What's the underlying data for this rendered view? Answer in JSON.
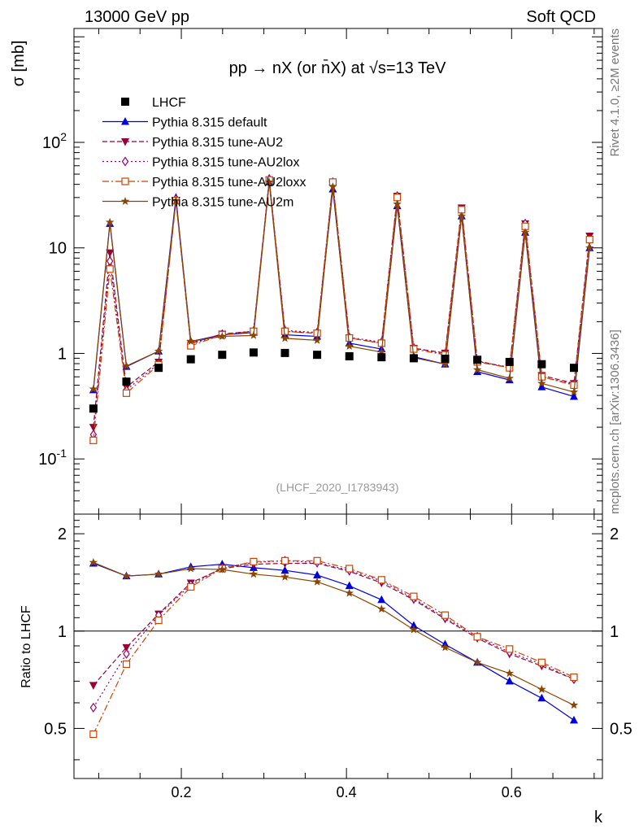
{
  "header": {
    "left": "13000 GeV pp",
    "right": "Soft QCD"
  },
  "side_labels": {
    "rivet": "Rivet 4.1.0, ≥2M events",
    "mcplots": "mcplots.cern.ch [arXiv:1306.3436]"
  },
  "colors": {
    "lhcf": "#000000",
    "default": "#0000dd",
    "au2": "#990033",
    "au2lox": "#990066",
    "au2loxx": "#cc4400",
    "au2m": "#8b4500"
  },
  "chart_data": {
    "type": "line",
    "title": "pp → nX (or n̄X) at √s=13 TeV",
    "analysis_label": "(LHCF_2020_I1783943)",
    "xlabel": "k",
    "ylabel": "σ [mb]",
    "ratio_ylabel": "Ratio to LHCF",
    "xlim": [
      0.07,
      0.71
    ],
    "ylim": [
      0.03,
      1200
    ],
    "ratio_ylim": [
      0.35,
      2.3
    ],
    "x_ticks": [
      "0.2",
      "0.4",
      "0.6"
    ],
    "y_ticks": [
      "10^-1",
      "1",
      "10",
      "10^2"
    ],
    "ratio_ticks": [
      "0.5",
      "1",
      "2"
    ],
    "legend_position": "top-left",
    "x": [
      0.0935,
      0.1135,
      0.1335,
      0.1725,
      0.1935,
      0.2115,
      0.2495,
      0.2875,
      0.3065,
      0.3255,
      0.3645,
      0.3835,
      0.4035,
      0.4425,
      0.4615,
      0.4815,
      0.5195,
      0.5395,
      0.5585,
      0.5975,
      0.6165,
      0.6365,
      0.6755,
      0.6945
    ],
    "data_points": {
      "x": [
        0.0935,
        0.1335,
        0.1725,
        0.2115,
        0.2495,
        0.2875,
        0.3255,
        0.3645,
        0.4035,
        0.4425,
        0.4815,
        0.5195,
        0.5585,
        0.5975,
        0.6365,
        0.6755
      ],
      "values": [
        0.3,
        0.54,
        0.73,
        0.88,
        0.97,
        1.02,
        1.01,
        0.97,
        0.94,
        0.92,
        0.9,
        0.89,
        0.87,
        0.83,
        0.79,
        0.73
      ]
    },
    "series": [
      {
        "name": "LHCF",
        "key": "lhcf",
        "marker": "square",
        "dash": ""
      },
      {
        "name": "Pythia 8.315 default",
        "key": "default",
        "marker": "triangle",
        "dash": "",
        "values": [
          0.45,
          17,
          0.75,
          1.05,
          30,
          1.3,
          1.5,
          1.58,
          42,
          1.5,
          1.45,
          36,
          1.25,
          1.1,
          25,
          0.93,
          0.79,
          20,
          0.67,
          0.56,
          14,
          0.48,
          0.39,
          10
        ],
        "ratio": [
          1.62,
          1.48,
          1.5,
          1.58,
          1.61,
          1.57,
          1.54,
          1.49,
          1.38,
          1.25,
          1.04,
          0.91,
          0.8,
          0.7,
          0.62,
          0.53
        ]
      },
      {
        "name": "Pythia 8.315 tune-AU2",
        "key": "au2",
        "marker": "triangle-down",
        "dash": "6,3",
        "values": [
          0.2,
          9.0,
          0.48,
          0.83,
          28,
          1.25,
          1.53,
          1.62,
          44,
          1.62,
          1.55,
          40,
          1.4,
          1.25,
          31,
          1.12,
          1.01,
          24,
          0.85,
          0.73,
          17,
          0.62,
          0.52,
          13
        ],
        "ratio": [
          0.68,
          0.89,
          1.13,
          1.41,
          1.56,
          1.61,
          1.62,
          1.62,
          1.53,
          1.41,
          1.25,
          1.09,
          0.95,
          0.85,
          0.78,
          0.71
        ]
      },
      {
        "name": "Pythia 8.315 tune-AU2lox",
        "key": "au2lox",
        "marker": "diamond",
        "dash": "2,3",
        "values": [
          0.17,
          7.5,
          0.45,
          0.8,
          29,
          1.22,
          1.52,
          1.63,
          45,
          1.65,
          1.58,
          42,
          1.42,
          1.28,
          31,
          1.13,
          0.98,
          23,
          0.84,
          0.74,
          17,
          0.6,
          0.51,
          12
        ],
        "ratio": [
          0.58,
          0.85,
          1.12,
          1.39,
          1.57,
          1.63,
          1.65,
          1.63,
          1.54,
          1.43,
          1.26,
          1.1,
          0.96,
          0.86,
          0.79,
          0.71
        ]
      },
      {
        "name": "Pythia 8.315 tune-AU2loxx",
        "key": "au2loxx",
        "marker": "square-open",
        "dash": "8,3,2,3",
        "values": [
          0.15,
          6.3,
          0.42,
          0.78,
          28,
          1.18,
          1.5,
          1.62,
          44,
          1.62,
          1.55,
          42,
          1.4,
          1.25,
          30,
          1.1,
          0.97,
          23,
          0.83,
          0.73,
          16,
          0.6,
          0.5,
          12
        ],
        "ratio": [
          0.48,
          0.79,
          1.08,
          1.37,
          1.56,
          1.64,
          1.65,
          1.65,
          1.56,
          1.44,
          1.28,
          1.12,
          0.96,
          0.88,
          0.8,
          0.72
        ]
      },
      {
        "name": "Pythia 8.315 tune-AU2m",
        "key": "au2m",
        "marker": "star",
        "dash": "",
        "values": [
          0.46,
          17.5,
          0.76,
          1.05,
          28,
          1.3,
          1.45,
          1.48,
          42,
          1.39,
          1.33,
          38,
          1.17,
          1.03,
          26,
          0.91,
          0.79,
          20,
          0.7,
          0.58,
          14,
          0.52,
          0.43,
          10
        ],
        "ratio": [
          1.63,
          1.48,
          1.5,
          1.56,
          1.55,
          1.5,
          1.47,
          1.42,
          1.31,
          1.17,
          1.01,
          0.89,
          0.8,
          0.74,
          0.66,
          0.59
        ]
      }
    ]
  }
}
